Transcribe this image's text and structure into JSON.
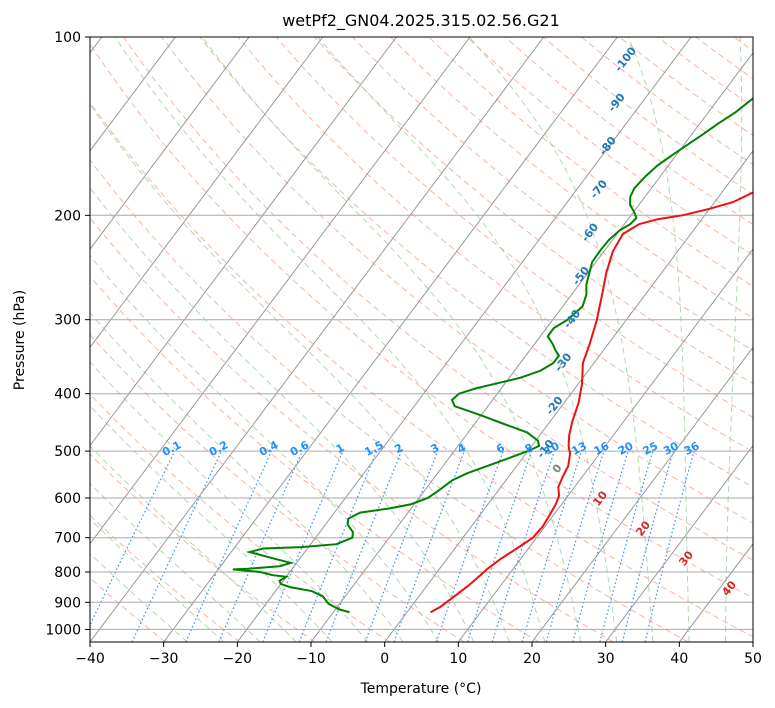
{
  "chart_data": {
    "type": "line",
    "title": "wetPf2_GN04.2025.315.02.56.G21",
    "xlabel": "Temperature (°C)",
    "ylabel": "Pressure (hPa)",
    "xlim": [
      -40,
      50
    ],
    "ylim": [
      1050,
      100
    ],
    "y_scale": "log",
    "grid": true,
    "x_ticks": [
      -40,
      -30,
      -20,
      -10,
      0,
      10,
      20,
      30,
      40,
      50
    ],
    "y_ticks": [
      100,
      200,
      300,
      400,
      500,
      600,
      700,
      800,
      900,
      1000
    ],
    "series": [
      {
        "role": "temperature",
        "color": "#ee1111",
        "points": [
          [
            3.2,
            935
          ],
          [
            4.0,
            915
          ],
          [
            4.8,
            880
          ],
          [
            5.6,
            845
          ],
          [
            6.2,
            810
          ],
          [
            6.5,
            790
          ],
          [
            7.3,
            760
          ],
          [
            8.4,
            730
          ],
          [
            9.5,
            700
          ],
          [
            9.7,
            670
          ],
          [
            9.5,
            645
          ],
          [
            9.2,
            615
          ],
          [
            8.8,
            595
          ],
          [
            7.8,
            575
          ],
          [
            7.3,
            550
          ],
          [
            7.0,
            530
          ],
          [
            6.0,
            505
          ],
          [
            5.0,
            490
          ],
          [
            4.0,
            470
          ],
          [
            3.0,
            445
          ],
          [
            2.0,
            415
          ],
          [
            0.5,
            385
          ],
          [
            -1.5,
            355
          ],
          [
            -2.5,
            330
          ],
          [
            -4.0,
            300
          ],
          [
            -6.0,
            270
          ],
          [
            -7.5,
            250
          ],
          [
            -8.8,
            230
          ],
          [
            -9.2,
            215
          ],
          [
            -8.0,
            207
          ],
          [
            -6.0,
            203
          ],
          [
            -3.0,
            200
          ],
          [
            0.0,
            195
          ],
          [
            2.5,
            190
          ],
          [
            4.5,
            182
          ],
          [
            6.0,
            172
          ],
          [
            7.5,
            162
          ],
          [
            9.0,
            155
          ],
          [
            11.0,
            148
          ],
          [
            12.5,
            143
          ],
          [
            14.0,
            138
          ],
          [
            15.5,
            133
          ],
          [
            17.0,
            128
          ],
          [
            18.3,
            122
          ],
          [
            19.5,
            117
          ],
          [
            21.0,
            112
          ],
          [
            22.5,
            108
          ],
          [
            24.5,
            104
          ],
          [
            27.0,
            100
          ]
        ]
      },
      {
        "role": "dewpoint",
        "color": "#008000",
        "points": [
          [
            -7.8,
            935
          ],
          [
            -9.5,
            925
          ],
          [
            -11.5,
            905
          ],
          [
            -13.0,
            880
          ],
          [
            -15.0,
            862
          ],
          [
            -18.5,
            848
          ],
          [
            -20.0,
            838
          ],
          [
            -20.5,
            828
          ],
          [
            -20.0,
            815
          ],
          [
            -22.0,
            810
          ],
          [
            -24.0,
            800
          ],
          [
            -28.0,
            792
          ],
          [
            -26.0,
            790
          ],
          [
            -22.0,
            782
          ],
          [
            -20.8,
            772
          ],
          [
            -24.0,
            757
          ],
          [
            -27.5,
            740
          ],
          [
            -26.0,
            730
          ],
          [
            -21.0,
            726
          ],
          [
            -16.5,
            718
          ],
          [
            -15.0,
            700
          ],
          [
            -15.5,
            685
          ],
          [
            -17.0,
            665
          ],
          [
            -17.5,
            650
          ],
          [
            -16.5,
            635
          ],
          [
            -13.0,
            625
          ],
          [
            -10.5,
            615
          ],
          [
            -8.8,
            600
          ],
          [
            -8.0,
            580
          ],
          [
            -7.3,
            560
          ],
          [
            -6.0,
            545
          ],
          [
            -4.0,
            530
          ],
          [
            -2.0,
            515
          ],
          [
            0.0,
            500
          ],
          [
            1.0,
            490
          ],
          [
            0.3,
            480
          ],
          [
            -2.0,
            465
          ],
          [
            -6.0,
            450
          ],
          [
            -10.0,
            435
          ],
          [
            -14.5,
            420
          ],
          [
            -15.5,
            410
          ],
          [
            -15.2,
            400
          ],
          [
            -13.5,
            392
          ],
          [
            -11.0,
            384
          ],
          [
            -8.5,
            376
          ],
          [
            -6.5,
            366
          ],
          [
            -5.5,
            355
          ],
          [
            -5.5,
            345
          ],
          [
            -6.5,
            338
          ],
          [
            -7.5,
            330
          ],
          [
            -9.0,
            320
          ],
          [
            -9.0,
            310
          ],
          [
            -8.0,
            300
          ],
          [
            -7.3,
            285
          ],
          [
            -8.0,
            272
          ],
          [
            -9.0,
            262
          ],
          [
            -9.8,
            250
          ],
          [
            -10.5,
            240
          ],
          [
            -10.6,
            230
          ],
          [
            -10.5,
            220
          ],
          [
            -10.0,
            212
          ],
          [
            -9.2,
            207
          ],
          [
            -9.0,
            202
          ],
          [
            -10.0,
            197
          ],
          [
            -11.2,
            192
          ],
          [
            -12.0,
            186
          ],
          [
            -12.3,
            180
          ],
          [
            -12.0,
            172
          ],
          [
            -11.5,
            165
          ],
          [
            -10.5,
            158
          ],
          [
            -9.5,
            152
          ],
          [
            -8.5,
            146
          ],
          [
            -7.5,
            140
          ],
          [
            -6.3,
            134
          ],
          [
            -5.5,
            128
          ],
          [
            -4.5,
            122
          ],
          [
            -3.5,
            117
          ],
          [
            -2.5,
            112
          ],
          [
            -1.5,
            107
          ],
          [
            -0.5,
            103
          ],
          [
            0.3,
            100
          ]
        ]
      }
    ],
    "dry_adiabat_labels": [
      "-100",
      "-90",
      "-80",
      "-70",
      "-60",
      "-50",
      "-40",
      "-30",
      "-20",
      "-10"
    ],
    "mixing_ratio_labels": [
      "0.1",
      "0.2",
      "0.4",
      "0.6",
      "1",
      "1.5",
      "2",
      "3",
      "4",
      "6",
      "8",
      "10",
      "13",
      "16",
      "20",
      "25",
      "30",
      "36"
    ],
    "moist_adiabat_labels": [
      "0",
      "10",
      "20",
      "30",
      "40"
    ],
    "colors": {
      "isotherm": "#999999",
      "isobar": "#aaaaaa",
      "dry_adiabat": "#f5a48a",
      "moist_adiabat": "#9fd09f",
      "mixing_ratio": "#3a8ee8",
      "dry_adiabat_label": "#1f77b4",
      "mixing_ratio_label": "#1e90ff",
      "moist_adiabat_label": "#d62728",
      "moist_adiabat_zero_label": "#808080",
      "background_curve": "#e6cdb0"
    }
  }
}
